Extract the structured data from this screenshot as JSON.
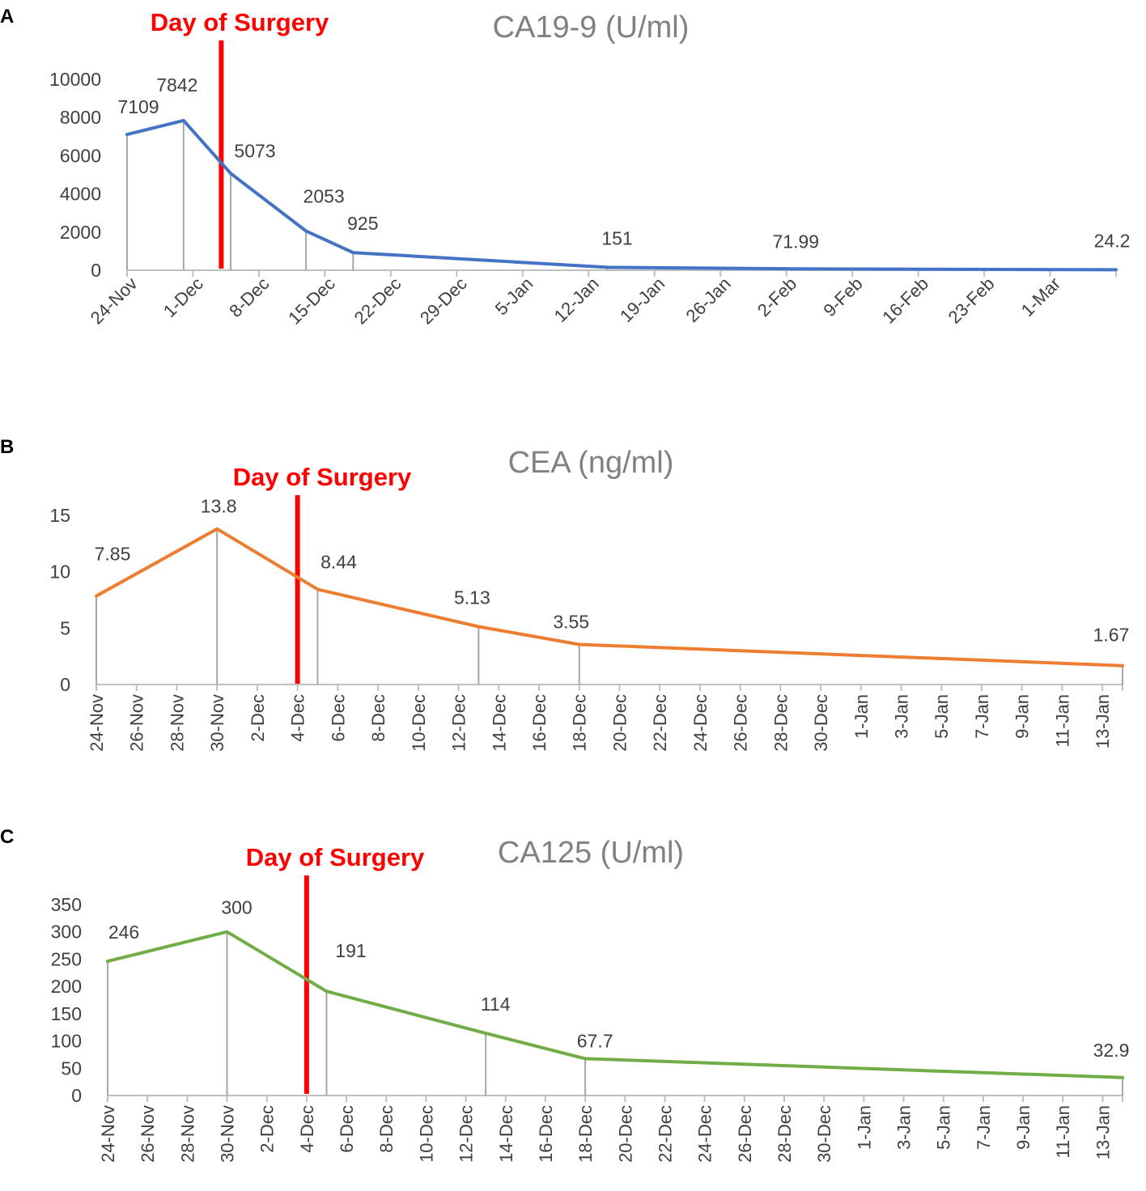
{
  "colors": {
    "surgery": "#ff0000",
    "axis": "#bfbfbf",
    "drop": "#a6a6a6",
    "title": "#808080",
    "text": "#404040"
  },
  "chart_data": [
    {
      "panel": "A",
      "type": "line",
      "title": "CA19-9 (U/ml)",
      "surgery_label": "Day of Surgery",
      "color": "#4472c4",
      "ylim": [
        0,
        10000
      ],
      "yticks": [
        "0",
        "2000",
        "4000",
        "6000",
        "8000",
        "10000"
      ],
      "x_day_range": [
        0,
        105
      ],
      "surgery_day": 10,
      "xticks": [
        "24-Nov",
        "1-Dec",
        "8-Dec",
        "15-Dec",
        "22-Dec",
        "29-Dec",
        "5-Jan",
        "12-Jan",
        "19-Jan",
        "26-Jan",
        "2-Feb",
        "9-Feb",
        "16-Feb",
        "23-Feb",
        "1-Mar"
      ],
      "xtick_step_days": 7,
      "points": [
        {
          "date": "24-Nov",
          "day": 0,
          "y": 7109,
          "label": "7109"
        },
        {
          "date": "30-Nov",
          "day": 6,
          "y": 7842,
          "label": "7842"
        },
        {
          "date": "5-Dec",
          "day": 11,
          "y": 5073,
          "label": "5073"
        },
        {
          "date": "13-Dec",
          "day": 19,
          "y": 2053,
          "label": "2053"
        },
        {
          "date": "18-Dec",
          "day": 24,
          "y": 925,
          "label": "925"
        },
        {
          "date": "13-Jan",
          "day": 51,
          "y": 151,
          "label": "151"
        },
        {
          "date": "2-Feb",
          "day": 71,
          "y": 71.99,
          "label": "71.99"
        },
        {
          "date": "5-Mar",
          "day": 105,
          "y": 24.2,
          "label": "24.2"
        }
      ],
      "drop_lines_for": [
        0,
        1,
        2,
        3,
        4,
        5
      ]
    },
    {
      "panel": "B",
      "type": "line",
      "title": "CEA (ng/ml)",
      "surgery_label": "Day of Surgery",
      "color": "#ed7d31",
      "ylim": [
        0,
        15
      ],
      "yticks": [
        "0",
        "5",
        "10",
        "15"
      ],
      "x_day_range": [
        0,
        51
      ],
      "surgery_day": 10,
      "xticks": [
        "24-Nov",
        "26-Nov",
        "28-Nov",
        "30-Nov",
        "2-Dec",
        "4-Dec",
        "6-Dec",
        "8-Dec",
        "10-Dec",
        "12-Dec",
        "14-Dec",
        "16-Dec",
        "18-Dec",
        "20-Dec",
        "22-Dec",
        "24-Dec",
        "26-Dec",
        "28-Dec",
        "30-Dec",
        "1-Jan",
        "3-Jan",
        "5-Jan",
        "7-Jan",
        "9-Jan",
        "11-Jan",
        "13-Jan"
      ],
      "xtick_step_days": 2,
      "points": [
        {
          "date": "24-Nov",
          "day": 0,
          "y": 7.85,
          "label": "7.85"
        },
        {
          "date": "30-Nov",
          "day": 6,
          "y": 13.8,
          "label": "13.8"
        },
        {
          "date": "5-Dec",
          "day": 11,
          "y": 8.44,
          "label": "8.44"
        },
        {
          "date": "13-Dec",
          "day": 19,
          "y": 5.13,
          "label": "5.13"
        },
        {
          "date": "18-Dec",
          "day": 24,
          "y": 3.55,
          "label": "3.55"
        },
        {
          "date": "14-Jan",
          "day": 51,
          "y": 1.67,
          "label": "1.67"
        }
      ],
      "drop_lines_for": [
        0,
        1,
        2,
        3,
        4,
        5
      ]
    },
    {
      "panel": "C",
      "type": "line",
      "title": "CA125 (U/ml)",
      "surgery_label": "Day of Surgery",
      "color": "#70ad47",
      "ylim": [
        0,
        350
      ],
      "yticks": [
        "0",
        "50",
        "100",
        "150",
        "200",
        "250",
        "300",
        "350"
      ],
      "x_day_range": [
        0,
        51
      ],
      "surgery_day": 10,
      "xticks": [
        "24-Nov",
        "26-Nov",
        "28-Nov",
        "30-Nov",
        "2-Dec",
        "4-Dec",
        "6-Dec",
        "8-Dec",
        "10-Dec",
        "12-Dec",
        "14-Dec",
        "16-Dec",
        "18-Dec",
        "20-Dec",
        "22-Dec",
        "24-Dec",
        "26-Dec",
        "28-Dec",
        "30-Dec",
        "1-Jan",
        "3-Jan",
        "5-Jan",
        "7-Jan",
        "9-Jan",
        "11-Jan",
        "13-Jan"
      ],
      "xtick_step_days": 2,
      "points": [
        {
          "date": "24-Nov",
          "day": 0,
          "y": 246,
          "label": "246"
        },
        {
          "date": "30-Nov",
          "day": 6,
          "y": 300,
          "label": "300"
        },
        {
          "date": "5-Dec",
          "day": 11,
          "y": 191,
          "label": "191"
        },
        {
          "date": "13-Dec",
          "day": 19,
          "y": 114,
          "label": "114"
        },
        {
          "date": "18-Dec",
          "day": 24,
          "y": 67.7,
          "label": "67.7"
        },
        {
          "date": "14-Jan",
          "day": 51,
          "y": 32.9,
          "label": "32.9"
        }
      ],
      "drop_lines_for": [
        0,
        1,
        2,
        3,
        4,
        5
      ]
    }
  ]
}
